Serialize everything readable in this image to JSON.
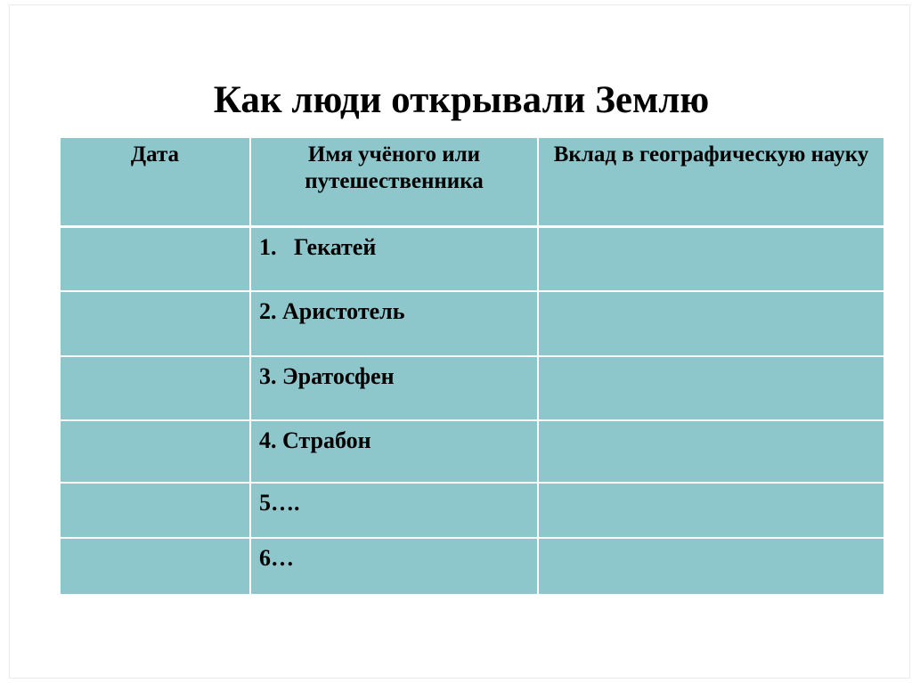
{
  "slide": {
    "title": "Как люди открывали Землю",
    "table": {
      "headers": {
        "date": "Дата",
        "name": "Имя учёного или путешественника",
        "contribution": "Вклад в географическую науку"
      },
      "rows": [
        {
          "date": "",
          "name": "1.   Гекатей",
          "contribution": ""
        },
        {
          "date": "",
          "name": "2. Аристотель",
          "contribution": ""
        },
        {
          "date": "",
          "name": "3. Эратосфен",
          "contribution": ""
        },
        {
          "date": "",
          "name": "4. Страбон",
          "contribution": ""
        },
        {
          "date": "",
          "name": "5….",
          "contribution": ""
        },
        {
          "date": "",
          "name": "6…",
          "contribution": ""
        }
      ]
    },
    "colors": {
      "background": "#ffffff",
      "table_cell_bg": "#8dc6cb",
      "cell_border": "#ffffff",
      "text": "#000000",
      "slide_frame_border": "#ebebeb"
    }
  }
}
